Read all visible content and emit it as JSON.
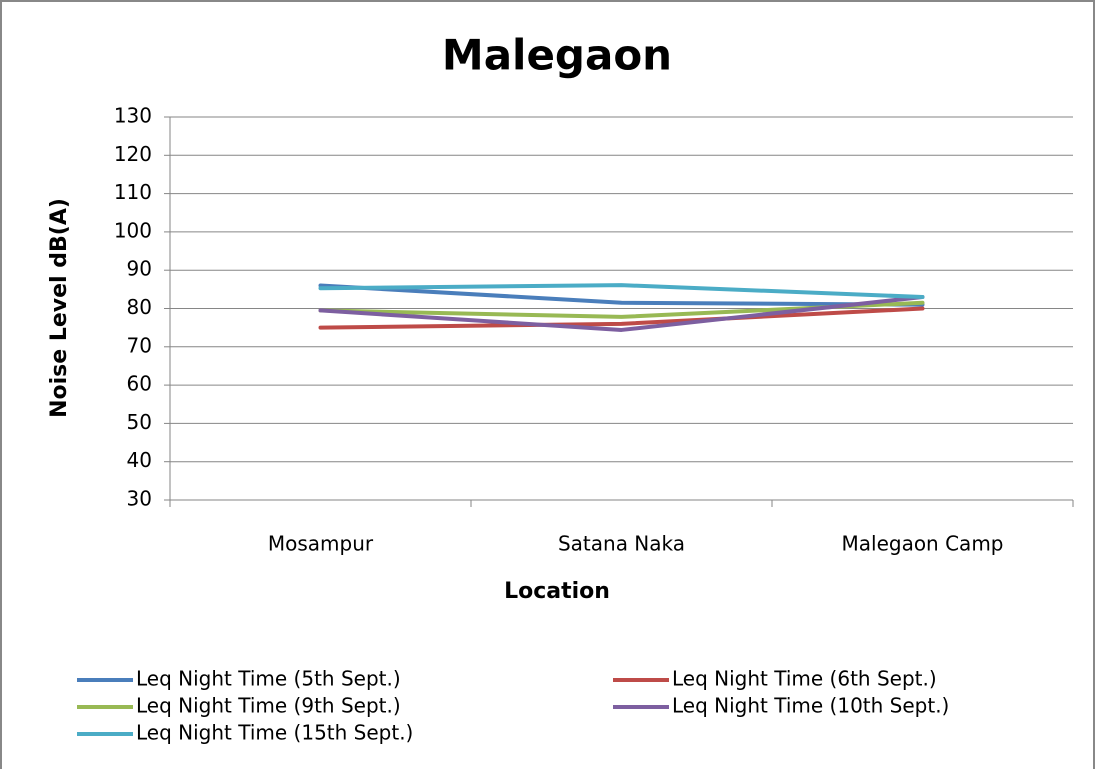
{
  "chart_data": {
    "type": "line",
    "title": "Malegaon",
    "x_label": "Location",
    "y_label": "Noise Level dB(A)",
    "categories": [
      "Mosampur",
      "Satana Naka",
      "Malegaon Camp"
    ],
    "series": [
      {
        "name": "Leq Night Time (5th Sept.)",
        "color": "#4a7ebb",
        "values": [
          86,
          81.5,
          81
        ]
      },
      {
        "name": "Leq Night Time (6th Sept.)",
        "color": "#be4b48",
        "values": [
          75,
          76,
          80
        ]
      },
      {
        "name": "Leq Night Time (9th Sept.)",
        "color": "#98b954",
        "values": [
          79.5,
          77.8,
          81.5
        ]
      },
      {
        "name": "Leq Night Time (10th Sept.)",
        "color": "#7d5fa0",
        "values": [
          79.5,
          74.4,
          83
        ]
      },
      {
        "name": "Leq Night Time (15th Sept.)",
        "color": "#4bacc6",
        "values": [
          85.3,
          86.1,
          83
        ]
      }
    ],
    "ylim": [
      30,
      130
    ],
    "yticks": [
      30,
      40,
      50,
      60,
      70,
      80,
      90,
      100,
      110,
      120,
      130
    ],
    "grid": true,
    "legend": "bottom"
  }
}
